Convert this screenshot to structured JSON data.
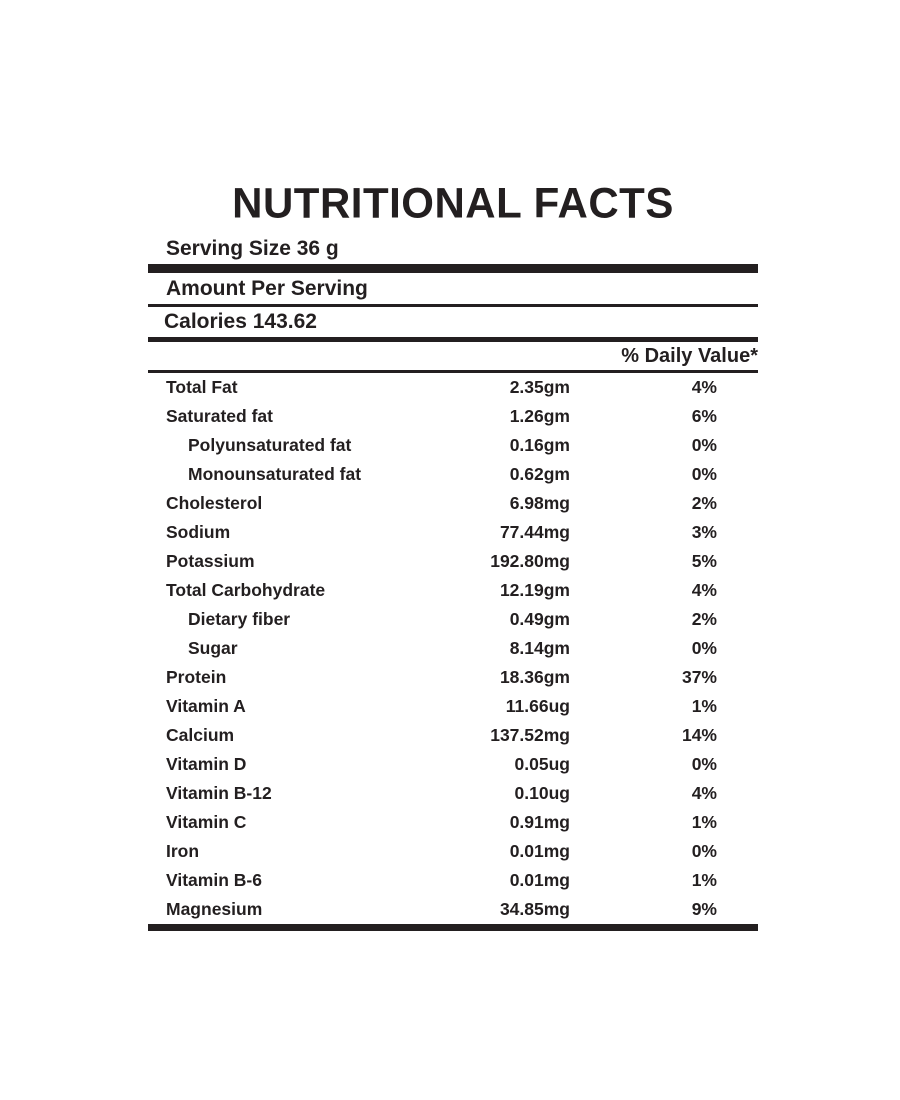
{
  "label": {
    "title": "NUTRITIONAL FACTS",
    "serving_size": "Serving Size 36 g",
    "amount_per_serving": "Amount Per Serving",
    "calories": "Calories 143.62",
    "daily_value_header": "% Daily Value*",
    "colors": {
      "ink": "#231f20",
      "background": "#ffffff"
    },
    "rows": [
      {
        "name": "Total Fat",
        "amount": "2.35gm",
        "dv": "4%",
        "indent": false
      },
      {
        "name": "Saturated fat",
        "amount": "1.26gm",
        "dv": "6%",
        "indent": false
      },
      {
        "name": "Polyunsaturated fat",
        "amount": "0.16gm",
        "dv": "0%",
        "indent": true
      },
      {
        "name": "Monounsaturated fat",
        "amount": "0.62gm",
        "dv": "0%",
        "indent": true
      },
      {
        "name": "Cholesterol",
        "amount": "6.98mg",
        "dv": "2%",
        "indent": false
      },
      {
        "name": "Sodium",
        "amount": "77.44mg",
        "dv": "3%",
        "indent": false
      },
      {
        "name": "Potassium",
        "amount": "192.80mg",
        "dv": "5%",
        "indent": false
      },
      {
        "name": "Total Carbohydrate",
        "amount": "12.19gm",
        "dv": "4%",
        "indent": false
      },
      {
        "name": "Dietary fiber",
        "amount": "0.49gm",
        "dv": "2%",
        "indent": true
      },
      {
        "name": "Sugar",
        "amount": "8.14gm",
        "dv": "0%",
        "indent": true
      },
      {
        "name": "Protein",
        "amount": "18.36gm",
        "dv": "37%",
        "indent": false
      },
      {
        "name": "Vitamin A",
        "amount": "11.66ug",
        "dv": "1%",
        "indent": false
      },
      {
        "name": "Calcium",
        "amount": "137.52mg",
        "dv": "14%",
        "indent": false
      },
      {
        "name": "Vitamin D",
        "amount": "0.05ug",
        "dv": "0%",
        "indent": false
      },
      {
        "name": "Vitamin B-12",
        "amount": "0.10ug",
        "dv": "4%",
        "indent": false
      },
      {
        "name": "Vitamin C",
        "amount": "0.91mg",
        "dv": "1%",
        "indent": false
      },
      {
        "name": "Iron",
        "amount": "0.01mg",
        "dv": "0%",
        "indent": false
      },
      {
        "name": "Vitamin B-6",
        "amount": "0.01mg",
        "dv": "1%",
        "indent": false
      },
      {
        "name": "Magnesium",
        "amount": "34.85mg",
        "dv": "9%",
        "indent": false
      }
    ]
  }
}
